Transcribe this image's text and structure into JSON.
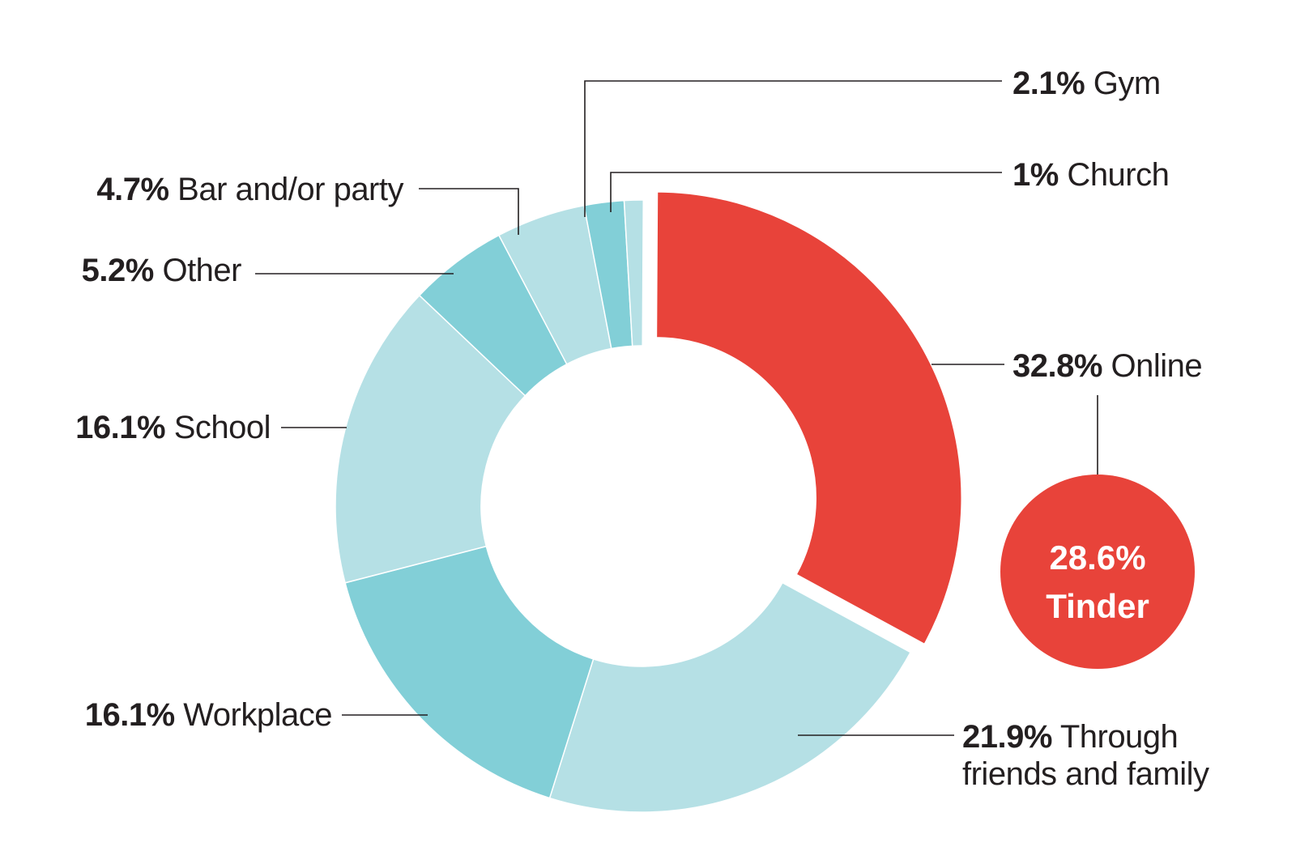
{
  "chart_data": {
    "type": "pie",
    "donut": true,
    "slices": [
      {
        "label": "Online",
        "value": 32.8,
        "value_text": "32.8%",
        "color": "#e8433a",
        "exploded": true
      },
      {
        "label": "Through friends and family",
        "value": 21.9,
        "value_text": "21.9%",
        "label_lines": [
          "Through",
          "friends and family"
        ],
        "color": "#b5e0e5"
      },
      {
        "label": "Workplace",
        "value": 16.1,
        "value_text": "16.1%",
        "color": "#82cfd7"
      },
      {
        "label": "School",
        "value": 16.1,
        "value_text": "16.1%",
        "color": "#b5e0e5"
      },
      {
        "label": "Other",
        "value": 5.2,
        "value_text": "5.2%",
        "color": "#82cfd7"
      },
      {
        "label": "Bar and/or party",
        "value": 4.7,
        "value_text": "4.7%",
        "color": "#b5e0e5"
      },
      {
        "label": "Gym",
        "value": 2.1,
        "value_text": "2.1%",
        "color": "#82cfd7"
      },
      {
        "label": "Church",
        "value": 1,
        "value_text": "1%",
        "color": "#b5e0e5"
      }
    ],
    "callout": {
      "value": 28.6,
      "value_text": "28.6%",
      "label": "Tinder",
      "color": "#e8433a",
      "linked_to": "Online"
    }
  }
}
